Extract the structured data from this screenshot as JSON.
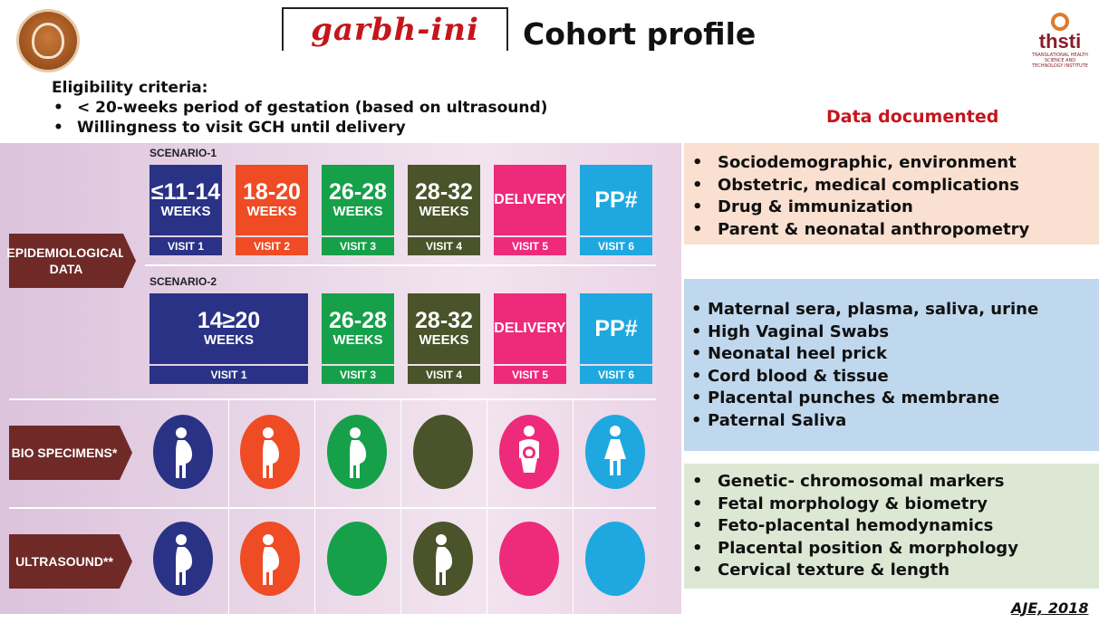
{
  "header": {
    "brand": "garbh-ini",
    "title": "Cohort profile",
    "right_logo_word": "thsti",
    "right_logo_small": "TRANSLATIONAL HEALTH SCIENCE AND TECHNOLOGY INSTITUTE"
  },
  "eligibility": {
    "heading": "Eligibility criteria:",
    "items": [
      "< 20-weeks period of gestation (based on ultrasound)",
      "Willingness to visit GCH until delivery"
    ]
  },
  "data_documented_heading": "Data documented",
  "rows": {
    "epidemiological": "EPIDEMIOLOGICAL DATA",
    "bio": "BIO SPECIMENS*",
    "ultrasound": "ULTRASOUND**"
  },
  "scenario1": {
    "label": "SCENARIO-1",
    "boxes": [
      {
        "big": "≤11-14",
        "small": "WEEKS",
        "visit": "VISIT 1",
        "color": "#2a3286"
      },
      {
        "big": "18-20",
        "small": "WEEKS",
        "visit": "VISIT 2",
        "color": "#ef4b24"
      },
      {
        "big": "26-28",
        "small": "WEEKS",
        "visit": "VISIT 3",
        "color": "#16a04a"
      },
      {
        "big": "28-32",
        "small": "WEEKS",
        "visit": "VISIT 4",
        "color": "#4a5329"
      },
      {
        "big": "DELIVERY",
        "small": "",
        "visit": "VISIT 5",
        "color": "#ee2a7b"
      },
      {
        "big": "PP#",
        "small": "",
        "visit": "VISIT 6",
        "color": "#1fa8e0"
      }
    ]
  },
  "scenario2": {
    "label": "SCENARIO-2",
    "boxes": [
      {
        "big": "14≥20",
        "small": "WEEKS",
        "visit": "VISIT 1",
        "color": "#2a3286"
      },
      {
        "big": "26-28",
        "small": "WEEKS",
        "visit": "VISIT 3",
        "color": "#16a04a"
      },
      {
        "big": "28-32",
        "small": "WEEKS",
        "visit": "VISIT 4",
        "color": "#4a5329"
      },
      {
        "big": "DELIVERY",
        "small": "",
        "visit": "VISIT 5",
        "color": "#ee2a7b"
      },
      {
        "big": "PP#",
        "small": "",
        "visit": "VISIT 6",
        "color": "#1fa8e0"
      }
    ]
  },
  "bio_icons": [
    {
      "icon": "pregnant-woman-icon",
      "color": "#2a3286"
    },
    {
      "icon": "pregnant-woman-icon",
      "color": "#ef4b24"
    },
    {
      "icon": "pregnant-woman-icon",
      "color": "#16a04a"
    },
    {
      "icon": "blank-circle",
      "color": "#4a5329"
    },
    {
      "icon": "mother-baby-icon",
      "color": "#ee2a7b"
    },
    {
      "icon": "woman-icon",
      "color": "#1fa8e0"
    }
  ],
  "ultrasound_icons": [
    {
      "icon": "pregnant-woman-icon",
      "color": "#2a3286"
    },
    {
      "icon": "pregnant-woman-icon",
      "color": "#ef4b24"
    },
    {
      "icon": "blank-circle",
      "color": "#16a04a"
    },
    {
      "icon": "pregnant-woman-icon",
      "color": "#4a5329"
    },
    {
      "icon": "blank-circle",
      "color": "#ee2a7b"
    },
    {
      "icon": "blank-circle",
      "color": "#1fa8e0"
    }
  ],
  "documented": {
    "epidemiological": [
      "Sociodemographic, environment",
      "Obstetric, medical complications",
      "Drug & immunization",
      "Parent & neonatal anthropometry"
    ],
    "bio": [
      "Maternal sera, plasma, saliva, urine",
      "High Vaginal Swabs",
      "Neonatal heel prick",
      "Cord blood & tissue",
      "Placental punches & membrane",
      "Paternal Saliva"
    ],
    "ultrasound": [
      "Genetic- chromosomal markers",
      "Fetal morphology & biometry",
      "Feto-placental hemodynamics",
      "Placental position & morphology",
      "Cervical texture & length"
    ]
  },
  "citation": "AJE, 2018"
}
